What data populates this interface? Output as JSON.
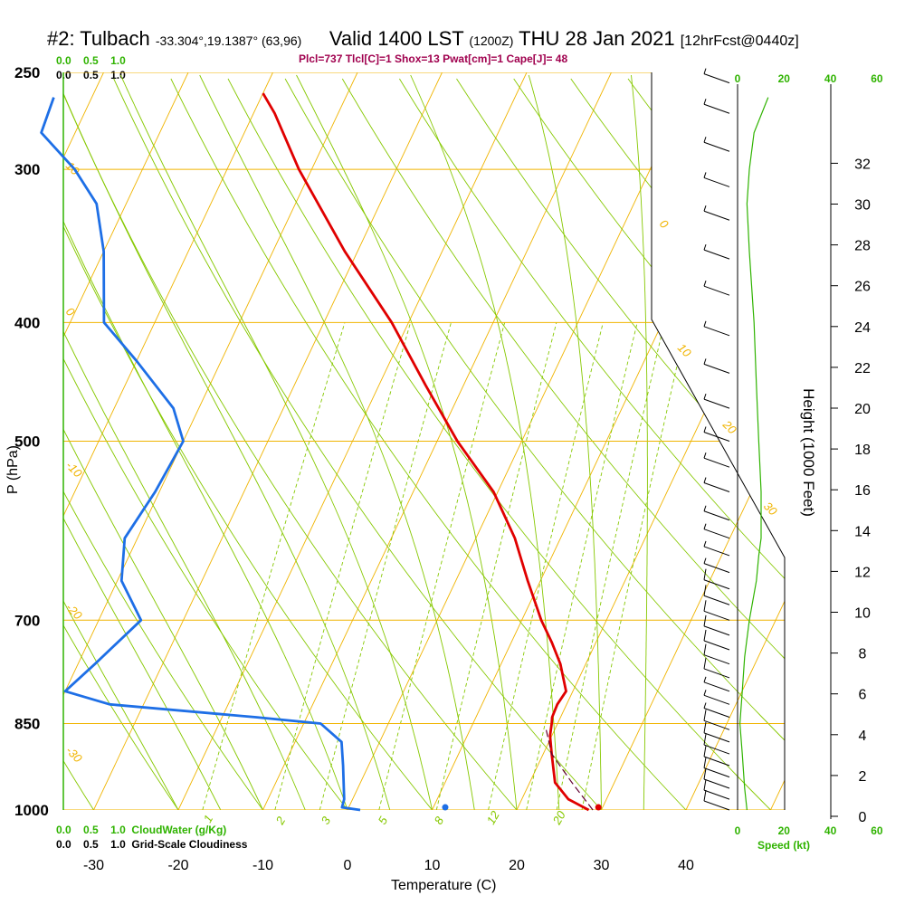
{
  "header": {
    "station": "#2: Tulbach",
    "coords": "-33.304°,19.1387° (63,96)",
    "valid": "Valid 1400 LST",
    "utc": "(1200Z)",
    "date": "THU 28 Jan 2021",
    "forecast": "[12hrFcst@0440z]",
    "params": "Plcl=737 Tlcl[C]=1 Shox=13 Pwat[cm]=1 Cape[J]= 48"
  },
  "scales": {
    "cloudwater_values": [
      "0.0",
      "0.5",
      "1.0"
    ],
    "cloudiness_values": [
      "0.0",
      "0.5",
      "1.0"
    ],
    "cloudwater_label": "CloudWater (g/Kg)",
    "cloudiness_label": "Grid-Scale Cloudiness",
    "speed_label": "Speed (kt)",
    "speed_ticks": [
      "0",
      "20",
      "40",
      "60"
    ]
  },
  "colors": {
    "isobar": "#f0b400",
    "adiabat": "#86c800",
    "moist": "#86c800",
    "temperature": "#e00000",
    "dewpoint": "#1e6fe6",
    "speed": "#2fb300",
    "params": "#a0004e",
    "parcel": "#600030"
  },
  "chart_data": {
    "type": "skew-t",
    "xlabel": "Temperature (C)",
    "ylabel": "P (hPa)",
    "y2label": "Height (1000 Feet)",
    "x_ticks": [
      -30,
      -20,
      -10,
      0,
      10,
      20,
      30,
      40
    ],
    "pressure_ticks": [
      250,
      300,
      400,
      500,
      700,
      850,
      1000
    ],
    "height_ticks_kft": [
      0,
      2,
      4,
      6,
      8,
      10,
      12,
      14,
      16,
      18,
      20,
      22,
      24,
      26,
      28,
      30,
      32
    ],
    "xlim": [
      -33.5,
      51
    ],
    "ylim_hPa": [
      1000,
      250
    ],
    "isotherm_labels": [
      "10",
      "0",
      "-10",
      "-20",
      "-30",
      "0",
      "10",
      "20",
      "30"
    ],
    "mixing_ratio_labels": [
      "1",
      "2",
      "3",
      "5",
      "8",
      "12",
      "20"
    ],
    "series": [
      {
        "name": "temperature",
        "points": [
          {
            "p": 1000,
            "t": 28.5
          },
          {
            "p": 980,
            "t": 25.5
          },
          {
            "p": 950,
            "t": 23.0
          },
          {
            "p": 900,
            "t": 21.0
          },
          {
            "p": 870,
            "t": 19.8
          },
          {
            "p": 850,
            "t": 19.3
          },
          {
            "p": 840,
            "t": 19.0
          },
          {
            "p": 820,
            "t": 18.9
          },
          {
            "p": 800,
            "t": 19.2
          },
          {
            "p": 760,
            "t": 17.0
          },
          {
            "p": 730,
            "t": 14.8
          },
          {
            "p": 700,
            "t": 12.3
          },
          {
            "p": 650,
            "t": 8.5
          },
          {
            "p": 620,
            "t": 6.2
          },
          {
            "p": 600,
            "t": 4.6
          },
          {
            "p": 550,
            "t": -0.5
          },
          {
            "p": 500,
            "t": -7.6
          },
          {
            "p": 450,
            "t": -14.5
          },
          {
            "p": 400,
            "t": -22.0
          },
          {
            "p": 350,
            "t": -31.5
          },
          {
            "p": 300,
            "t": -41.5
          },
          {
            "p": 270,
            "t": -47.5
          },
          {
            "p": 260,
            "t": -50.0
          }
        ]
      },
      {
        "name": "dewpoint",
        "points": [
          {
            "p": 1000,
            "t": 1.5
          },
          {
            "p": 995,
            "t": -0.8
          },
          {
            "p": 980,
            "t": -1.0
          },
          {
            "p": 920,
            "t": -3.0
          },
          {
            "p": 880,
            "t": -4.5
          },
          {
            "p": 850,
            "t": -8.0
          },
          {
            "p": 840,
            "t": -16.0
          },
          {
            "p": 820,
            "t": -34.0
          },
          {
            "p": 800,
            "t": -40.0
          },
          {
            "p": 760,
            "t": -38.0
          },
          {
            "p": 700,
            "t": -35.0
          },
          {
            "p": 650,
            "t": -39.5
          },
          {
            "p": 600,
            "t": -41.5
          },
          {
            "p": 550,
            "t": -40.5
          },
          {
            "p": 500,
            "t": -40.0
          },
          {
            "p": 470,
            "t": -43.0
          },
          {
            "p": 430,
            "t": -50.0
          },
          {
            "p": 400,
            "t": -56.0
          },
          {
            "p": 350,
            "t": -60.0
          },
          {
            "p": 320,
            "t": -63.5
          },
          {
            "p": 300,
            "t": -68.0
          },
          {
            "p": 280,
            "t": -74.0
          },
          {
            "p": 262,
            "t": -74.5
          }
        ]
      },
      {
        "name": "parcel",
        "points": [
          {
            "p": 1000,
            "t": 29.0
          },
          {
            "p": 950,
            "t": 25.0
          },
          {
            "p": 900,
            "t": 21.0
          },
          {
            "p": 860,
            "t": 19.0
          }
        ]
      }
    ],
    "surface_markers": {
      "temperature": 29.5,
      "dewpoint": 11.4
    },
    "wind_barbs_speed_kt": [
      {
        "p": 1000,
        "kt": 10
      },
      {
        "p": 980,
        "kt": 10
      },
      {
        "p": 960,
        "kt": 10
      },
      {
        "p": 940,
        "kt": 10
      },
      {
        "p": 920,
        "kt": 10
      },
      {
        "p": 900,
        "kt": 10
      },
      {
        "p": 880,
        "kt": 10
      },
      {
        "p": 860,
        "kt": 10
      },
      {
        "p": 840,
        "kt": 5
      },
      {
        "p": 820,
        "kt": 5
      },
      {
        "p": 800,
        "kt": 5
      },
      {
        "p": 780,
        "kt": 10
      },
      {
        "p": 760,
        "kt": 10
      },
      {
        "p": 740,
        "kt": 10
      },
      {
        "p": 720,
        "kt": 10
      },
      {
        "p": 700,
        "kt": 10
      },
      {
        "p": 680,
        "kt": 10
      },
      {
        "p": 660,
        "kt": 10
      },
      {
        "p": 640,
        "kt": 5
      },
      {
        "p": 620,
        "kt": 5
      },
      {
        "p": 600,
        "kt": 5
      },
      {
        "p": 580,
        "kt": 5
      },
      {
        "p": 550,
        "kt": 5
      },
      {
        "p": 525,
        "kt": 5
      },
      {
        "p": 500,
        "kt": 5
      },
      {
        "p": 470,
        "kt": 5
      },
      {
        "p": 440,
        "kt": 5
      },
      {
        "p": 410,
        "kt": 5
      },
      {
        "p": 380,
        "kt": 5
      },
      {
        "p": 355,
        "kt": 5
      },
      {
        "p": 330,
        "kt": 5
      },
      {
        "p": 310,
        "kt": 5
      },
      {
        "p": 290,
        "kt": 5
      },
      {
        "p": 270,
        "kt": 5
      },
      {
        "p": 255,
        "kt": 5
      }
    ],
    "wind_speed_profile_kt": [
      {
        "p": 1000,
        "kt": 4
      },
      {
        "p": 960,
        "kt": 3
      },
      {
        "p": 900,
        "kt": 2
      },
      {
        "p": 850,
        "kt": 1
      },
      {
        "p": 800,
        "kt": 2
      },
      {
        "p": 750,
        "kt": 3
      },
      {
        "p": 700,
        "kt": 5
      },
      {
        "p": 650,
        "kt": 8
      },
      {
        "p": 620,
        "kt": 9
      },
      {
        "p": 600,
        "kt": 10
      },
      {
        "p": 550,
        "kt": 10
      },
      {
        "p": 500,
        "kt": 9
      },
      {
        "p": 450,
        "kt": 8
      },
      {
        "p": 400,
        "kt": 7
      },
      {
        "p": 350,
        "kt": 5
      },
      {
        "p": 320,
        "kt": 4
      },
      {
        "p": 300,
        "kt": 5
      },
      {
        "p": 280,
        "kt": 7
      },
      {
        "p": 262,
        "kt": 13
      }
    ]
  }
}
